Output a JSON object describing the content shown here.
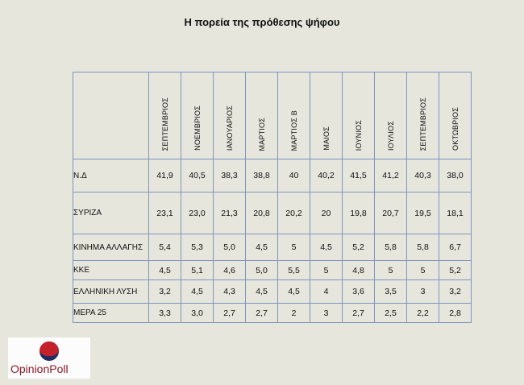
{
  "title": "Η πορεία της πρόθεσης ψήφου",
  "logo": {
    "text": "OpinionPoll",
    "colors": [
      "#c4212b",
      "#1f2c63"
    ]
  },
  "chart_data": {
    "type": "table",
    "columns": [
      "ΣΕΠΤΕΜΒΡΙΟΣ",
      "ΝΟΕΜΒΡΙΟΣ",
      "ΙΑΝΟΥΑΡΙΟΣ",
      "ΜΑΡΤΙΟΣ",
      "ΜΑΡΤΙΟΣ Β",
      "ΜΑΙΟΣ",
      "ΙΟΥΝΙΟΣ",
      "ΙΟΥΛΙΟΣ",
      "ΣΕΠΤΕΜΒΡΙΟΣ",
      "ΟΚΤΩΒΡΙΟΣ"
    ],
    "rows": [
      {
        "party": "Ν.Δ",
        "values": [
          "41,9",
          "40,5",
          "38,3",
          "38,8",
          "40",
          "40,2",
          "41,5",
          "41,2",
          "40,3",
          "38,0"
        ]
      },
      {
        "party": "ΣΥΡΙΖΑ",
        "values": [
          "23,1",
          "23,0",
          "21,3",
          "20,8",
          "20,2",
          "20",
          "19,8",
          "20,7",
          "19,5",
          "18,1"
        ]
      },
      {
        "party": "ΚΙΝΗΜΑ ΑΛΛΑΓΗΣ",
        "values": [
          "5,4",
          "5,3",
          "5,0",
          "4,5",
          "5",
          "4,5",
          "5,2",
          "5,8",
          "5,8",
          "6,7"
        ]
      },
      {
        "party": "ΚΚΕ",
        "values": [
          "4,5",
          "5,1",
          "4,6",
          "5,0",
          "5,5",
          "5",
          "4,8",
          "5",
          "5",
          "5,2"
        ]
      },
      {
        "party": "ΕΛΛΗΝΙΚΗ ΛΥΣΗ",
        "values": [
          "3,2",
          "4,5",
          "4,3",
          "4,5",
          "4,5",
          "4",
          "3,6",
          "3,5",
          "3",
          "3,2"
        ]
      },
      {
        "party": "ΜΕΡΑ 25",
        "values": [
          "3,3",
          "3,0",
          "2,7",
          "2,7",
          "2",
          "3",
          "2,7",
          "2,5",
          "2,2",
          "2,8"
        ]
      }
    ]
  }
}
